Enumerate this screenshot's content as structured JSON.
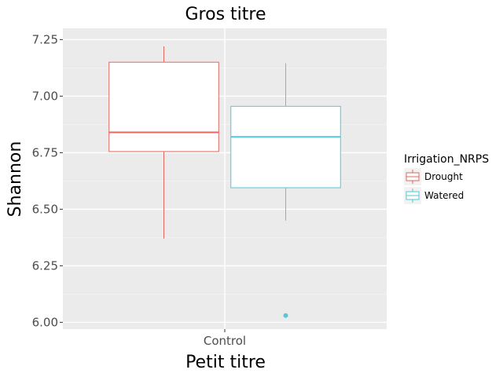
{
  "chart_data": {
    "type": "boxplot",
    "title": "Gros titre",
    "xlabel": "Petit titre",
    "ylabel": "Shannon",
    "categories": [
      "Control"
    ],
    "ylim": [
      5.97,
      7.3
    ],
    "yticks": [
      "6.00",
      "6.25",
      "6.50",
      "6.75",
      "7.00",
      "7.25"
    ],
    "grid": true,
    "legend": {
      "title": "Irrigation_NRPS",
      "placement": "right",
      "entries": [
        "Drought",
        "Watered"
      ]
    },
    "series": [
      {
        "name": "Drought",
        "color": "#e0685f",
        "category": "Control",
        "min": 6.37,
        "q1": 6.755,
        "median": 6.84,
        "q3": 7.15,
        "max": 7.22,
        "outliers": []
      },
      {
        "name": "Watered",
        "color": "#52c8d8",
        "category": "Control",
        "min": 6.45,
        "q1": 6.595,
        "median": 6.82,
        "q3": 6.955,
        "max": 7.145,
        "outliers": [
          6.03
        ]
      }
    ]
  }
}
